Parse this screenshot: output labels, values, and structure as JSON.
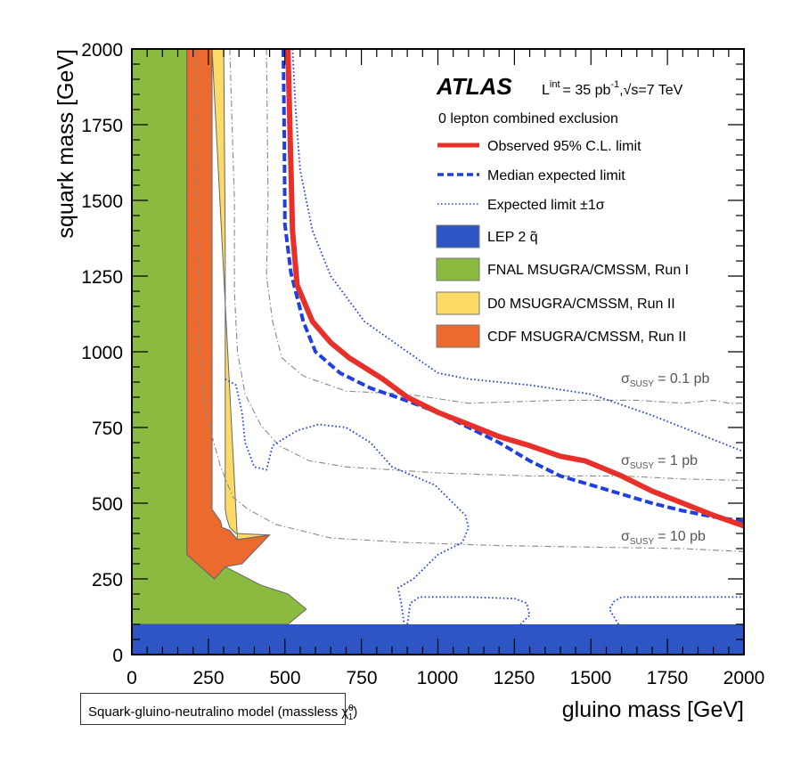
{
  "chart_data": {
    "type": "line",
    "title": "",
    "xlabel": "gluino mass [GeV]",
    "ylabel": "squark mass [GeV]",
    "xlim": [
      0,
      2000
    ],
    "ylim": [
      0,
      2000
    ],
    "grid": false,
    "x_ticks": [
      "0",
      "250",
      "500",
      "750",
      "1000",
      "1250",
      "1500",
      "1750",
      "2000"
    ],
    "y_ticks": [
      "0",
      "250",
      "500",
      "750",
      "1000",
      "1250",
      "1500",
      "1750",
      "2000"
    ],
    "experiment": "ATLAS",
    "luminosity_label": "L",
    "luminosity_sup": "int",
    "luminosity_value": "= 35 pb",
    "luminosity_exp": "-1",
    "energy_label": ",√s=7 TeV",
    "analysis_label": "0 lepton combined exclusion",
    "model_label": "Squark-gluino-neutralino model (massless χ̃",
    "model_label_sup": "0",
    "model_label_sub": "1",
    "model_label_end": ")",
    "legend_position": "top-right",
    "legend": [
      {
        "key": "observed",
        "label": "Observed 95% C.L. limit",
        "style": "solid-thick",
        "color": "#e8302a"
      },
      {
        "key": "expected",
        "label": "Median expected limit",
        "style": "dashed",
        "color": "#1f3fe0"
      },
      {
        "key": "expected_band",
        "label": "Expected limit ±1σ",
        "style": "dotted",
        "color": "#1f3fe0"
      },
      {
        "key": "lep",
        "label": "LEP 2 q̃",
        "style": "fill",
        "color": "#2d55c4"
      },
      {
        "key": "fnal",
        "label": "FNAL MSUGRA/CMSSM, Run I",
        "style": "fill",
        "color": "#8aba3f"
      },
      {
        "key": "d0",
        "label": "D0 MSUGRA/CMSSM, Run II",
        "style": "fill",
        "color": "#fbdb66"
      },
      {
        "key": "cdf",
        "label": "CDF MSUGRA/CMSSM, Run II",
        "style": "fill",
        "color": "#ec6a2e"
      }
    ],
    "series": [
      {
        "name": "Observed 95% C.L. limit",
        "color": "#e8302a",
        "points": [
          [
            510,
            2000
          ],
          [
            520,
            1600
          ],
          [
            525,
            1400
          ],
          [
            540,
            1220
          ],
          [
            590,
            1100
          ],
          [
            650,
            1030
          ],
          [
            710,
            980
          ],
          [
            820,
            910
          ],
          [
            900,
            850
          ],
          [
            1000,
            800
          ],
          [
            1100,
            760
          ],
          [
            1200,
            720
          ],
          [
            1300,
            690
          ],
          [
            1400,
            655
          ],
          [
            1480,
            640
          ],
          [
            1600,
            590
          ],
          [
            1700,
            540
          ],
          [
            1800,
            500
          ],
          [
            1900,
            460
          ],
          [
            2000,
            425
          ]
        ]
      },
      {
        "name": "Median expected limit",
        "color": "#1f3fe0",
        "points": [
          [
            495,
            2000
          ],
          [
            498,
            1700
          ],
          [
            500,
            1420
          ],
          [
            520,
            1260
          ],
          [
            560,
            1100
          ],
          [
            600,
            1000
          ],
          [
            680,
            930
          ],
          [
            780,
            880
          ],
          [
            880,
            845
          ],
          [
            1000,
            800
          ],
          [
            1100,
            750
          ],
          [
            1200,
            700
          ],
          [
            1300,
            640
          ],
          [
            1400,
            590
          ],
          [
            1500,
            560
          ],
          [
            1600,
            530
          ],
          [
            1700,
            500
          ],
          [
            1800,
            475
          ],
          [
            1900,
            455
          ],
          [
            2000,
            440
          ]
        ]
      },
      {
        "name": "Expected limit +1σ",
        "color": "#1f3fe0",
        "points": [
          [
            525,
            2000
          ],
          [
            535,
            1800
          ],
          [
            550,
            1600
          ],
          [
            590,
            1400
          ],
          [
            650,
            1250
          ],
          [
            760,
            1100
          ],
          [
            900,
            1000
          ],
          [
            1000,
            930
          ],
          [
            1100,
            910
          ],
          [
            1300,
            890
          ],
          [
            1500,
            860
          ],
          [
            1700,
            790
          ],
          [
            1850,
            730
          ],
          [
            2000,
            670
          ]
        ]
      },
      {
        "name": "Expected limit -1σ (upper lobe)",
        "color": "#1f3fe0",
        "points": [
          [
            305,
            910
          ],
          [
            340,
            890
          ],
          [
            360,
            800
          ],
          [
            370,
            700
          ],
          [
            400,
            620
          ],
          [
            440,
            610
          ],
          [
            460,
            690
          ],
          [
            540,
            740
          ],
          [
            610,
            760
          ],
          [
            700,
            750
          ],
          [
            780,
            700
          ],
          [
            850,
            620
          ],
          [
            990,
            560
          ],
          [
            1050,
            500
          ],
          [
            1090,
            460
          ],
          [
            1100,
            420
          ],
          [
            1080,
            370
          ],
          [
            1000,
            330
          ],
          [
            920,
            250
          ],
          [
            870,
            220
          ],
          [
            880,
            170
          ],
          [
            890,
            100
          ]
        ]
      },
      {
        "name": "Expected limit -1σ (lower segments)",
        "color": "#1f3fe0",
        "points": [
          [
            900,
            100
          ],
          [
            910,
            170
          ],
          [
            940,
            190
          ],
          [
            1100,
            190
          ],
          [
            1250,
            185
          ],
          [
            1290,
            170
          ],
          [
            1300,
            130
          ],
          [
            1270,
            100
          ]
        ]
      },
      {
        "name": "Expected limit -1σ (right segment)",
        "color": "#1f3fe0",
        "points": [
          [
            1590,
            100
          ],
          [
            1560,
            150
          ],
          [
            1575,
            175
          ],
          [
            1600,
            190
          ],
          [
            1800,
            190
          ],
          [
            2000,
            190
          ]
        ]
      }
    ],
    "cross_section_contours": [
      {
        "label": "σ",
        "sub": "SUSY",
        "value": "= 0.1 pb",
        "points": [
          [
            440,
            2000
          ],
          [
            445,
            1500
          ],
          [
            440,
            1250
          ],
          [
            460,
            1100
          ],
          [
            490,
            980
          ],
          [
            560,
            920
          ],
          [
            700,
            870
          ],
          [
            900,
            860
          ],
          [
            1100,
            830
          ],
          [
            1400,
            840
          ],
          [
            1650,
            840
          ],
          [
            1800,
            830
          ],
          [
            1900,
            840
          ],
          [
            1950,
            830
          ],
          [
            2000,
            830
          ]
        ]
      },
      {
        "label": "σ",
        "sub": "SUSY",
        "value": "= 1 pb",
        "points": [
          [
            320,
            2000
          ],
          [
            335,
            1500
          ],
          [
            335,
            1200
          ],
          [
            345,
            1000
          ],
          [
            370,
            860
          ],
          [
            420,
            760
          ],
          [
            480,
            690
          ],
          [
            580,
            640
          ],
          [
            700,
            620
          ],
          [
            850,
            610
          ],
          [
            1000,
            600
          ],
          [
            1300,
            590
          ],
          [
            1600,
            590
          ],
          [
            1800,
            580
          ],
          [
            2000,
            575
          ]
        ]
      },
      {
        "label": "σ",
        "sub": "SUSY",
        "value": "= 10 pb",
        "points": [
          [
            210,
            2000
          ],
          [
            215,
            1400
          ],
          [
            220,
            1000
          ],
          [
            240,
            800
          ],
          [
            290,
            620
          ],
          [
            330,
            520
          ],
          [
            380,
            480
          ],
          [
            470,
            430
          ],
          [
            650,
            385
          ],
          [
            900,
            370
          ],
          [
            1200,
            360
          ],
          [
            1500,
            355
          ],
          [
            1800,
            350
          ],
          [
            2000,
            340
          ]
        ]
      }
    ],
    "regions": [
      {
        "name": "LEP 2 q̃",
        "color": "#2d55c4",
        "points": [
          [
            0,
            0
          ],
          [
            2000,
            0
          ],
          [
            2000,
            100
          ],
          [
            0,
            100
          ]
        ]
      },
      {
        "name": "FNAL MSUGRA/CMSSM, Run I",
        "color": "#8aba3f",
        "points": [
          [
            0,
            100
          ],
          [
            0,
            2000
          ],
          [
            180,
            2000
          ],
          [
            180,
            330
          ],
          [
            270,
            250
          ],
          [
            305,
            290
          ],
          [
            420,
            230
          ],
          [
            510,
            200
          ],
          [
            570,
            150
          ],
          [
            510,
            100
          ]
        ]
      },
      {
        "name": "D0 MSUGRA/CMSSM, Run II",
        "color": "#fbdb66",
        "points": [
          [
            262,
            2000
          ],
          [
            300,
            2000
          ],
          [
            305,
            1350
          ],
          [
            305,
            480
          ],
          [
            310,
            450
          ],
          [
            320,
            420
          ],
          [
            340,
            400
          ],
          [
            450,
            395
          ],
          [
            345,
            380
          ]
        ]
      },
      {
        "name": "CDF MSUGRA/CMSSM, Run II",
        "color": "#ec6a2e",
        "points": [
          [
            180,
            2000
          ],
          [
            262,
            2000
          ],
          [
            262,
            480
          ],
          [
            290,
            440
          ],
          [
            295,
            420
          ],
          [
            320,
            410
          ],
          [
            345,
            380
          ],
          [
            450,
            395
          ],
          [
            360,
            300
          ],
          [
            305,
            290
          ],
          [
            270,
            250
          ],
          [
            180,
            330
          ]
        ]
      }
    ]
  }
}
